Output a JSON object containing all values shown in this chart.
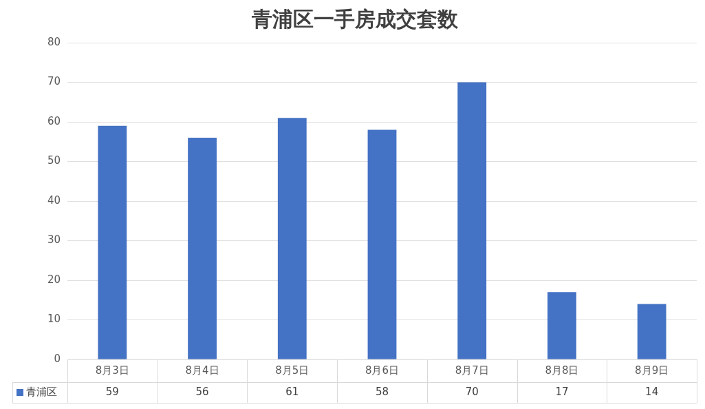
{
  "chart_data": {
    "type": "bar",
    "title": "青浦区一手房成交套数",
    "categories": [
      "8月3日",
      "8月4日",
      "8月5日",
      "8月6日",
      "8月7日",
      "8月8日",
      "8月9日"
    ],
    "series": [
      {
        "name": "青浦区",
        "color": "#4472c4",
        "values": [
          59,
          56,
          61,
          58,
          70,
          17,
          14
        ]
      }
    ],
    "ylim": [
      0,
      80
    ],
    "yticks": [
      0,
      10,
      20,
      30,
      40,
      50,
      60,
      70,
      80
    ],
    "grid": "y",
    "legend": "bottom",
    "data_labels": true
  }
}
